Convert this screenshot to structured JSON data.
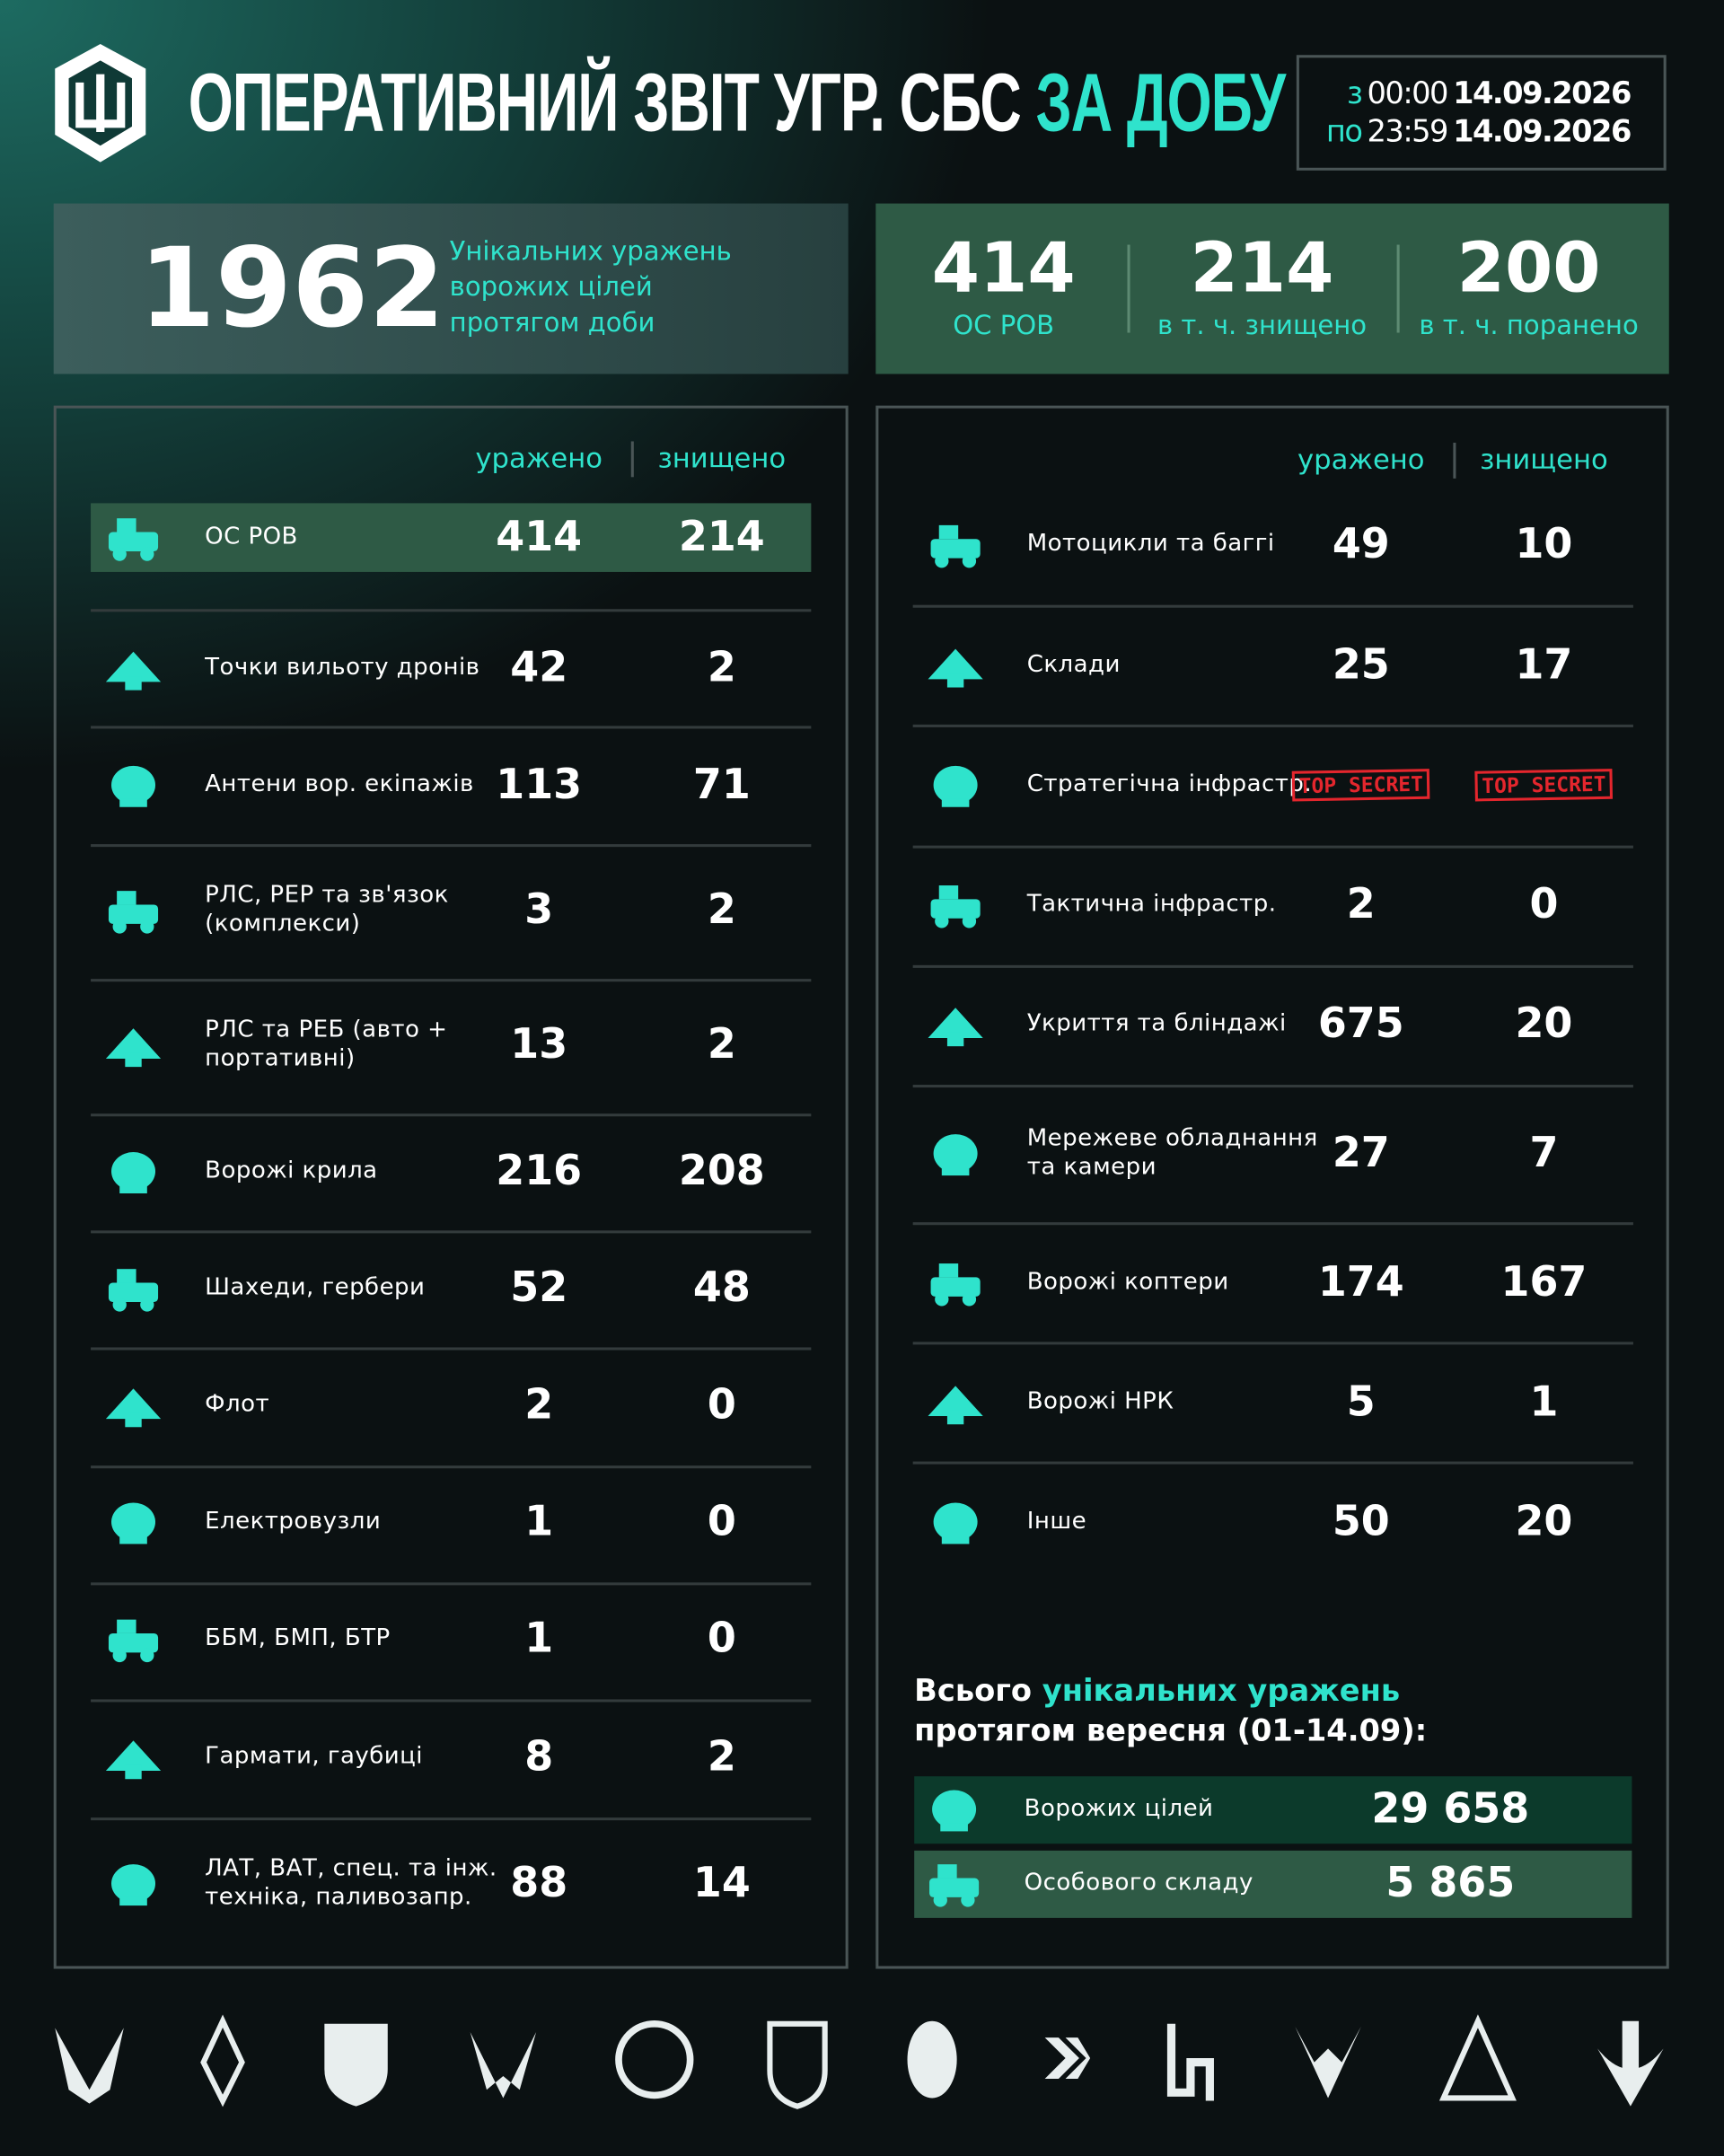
{
  "header": {
    "title_main": "ОПЕРАТИВНИЙ ЗВІТ УГР. СБС",
    "title_accent": "ЗА ДОБУ",
    "period": {
      "from_label": "з",
      "from_time": "00:00",
      "from_date": "14.09.2026",
      "to_label": "по",
      "to_time": "23:59",
      "to_date": "14.09.2026"
    }
  },
  "summary": {
    "total": "1962",
    "caption": [
      "Унікальних уражень",
      "ворожих цілей",
      "протягом доби"
    ],
    "personnel": [
      {
        "value": "414",
        "label": "ОС РОВ"
      },
      {
        "value": "214",
        "label": "в т. ч. знищено"
      },
      {
        "value": "200",
        "label": "в т. ч. поранено"
      }
    ]
  },
  "left_table": {
    "headers": [
      "уражено",
      "знищено"
    ],
    "rows": [
      {
        "label": "ОС РОВ",
        "hit": "414",
        "destroyed": "214"
      },
      {
        "label": "Точки вильоту дронів",
        "hit": "42",
        "destroyed": "2"
      },
      {
        "label": "Антени вор. екіпажів",
        "hit": "113",
        "destroyed": "71"
      },
      {
        "label": "РЛС, РЕР та зв'язок\n(комплекси)",
        "hit": "3",
        "destroyed": "2"
      },
      {
        "label": "РЛС та РЕБ (авто +\nпортативні)",
        "hit": "13",
        "destroyed": "2"
      },
      {
        "label": "Ворожі крила",
        "hit": "216",
        "destroyed": "208"
      },
      {
        "label": "Шахеди, гербери",
        "hit": "52",
        "destroyed": "48"
      },
      {
        "label": "Флот",
        "hit": "2",
        "destroyed": "0"
      },
      {
        "label": "Електровузли",
        "hit": "1",
        "destroyed": "0"
      },
      {
        "label": "ББМ, БМП, БТР",
        "hit": "1",
        "destroyed": "0"
      },
      {
        "label": "Гармати, гаубиці",
        "hit": "8",
        "destroyed": "2"
      },
      {
        "label": "ЛАТ, ВАТ, спец. та інж.\nтехніка, паливозапр.",
        "hit": "88",
        "destroyed": "14"
      }
    ]
  },
  "right_table": {
    "headers": [
      "уражено",
      "знищено"
    ],
    "rows": [
      {
        "label": "Мотоцикли та баггі",
        "hit": "49",
        "destroyed": "10"
      },
      {
        "label": "Склади",
        "hit": "25",
        "destroyed": "17"
      },
      {
        "label": "Стратегічна інфрастр.",
        "hit": "TOP SECRET",
        "destroyed": "TOP SECRET"
      },
      {
        "label": "Тактична інфрастр.",
        "hit": "2",
        "destroyed": "0"
      },
      {
        "label": "Укриття та бліндажі",
        "hit": "675",
        "destroyed": "20"
      },
      {
        "label": "Мережеве обладнання\nта камери",
        "hit": "27",
        "destroyed": "7"
      },
      {
        "label": "Ворожі коптери",
        "hit": "174",
        "destroyed": "167"
      },
      {
        "label": "Ворожі НРК",
        "hit": "5",
        "destroyed": "1"
      },
      {
        "label": "Інше",
        "hit": "50",
        "destroyed": "20"
      }
    ]
  },
  "totals": {
    "title_pre": "Всього",
    "title_accent": "унікальних уражень",
    "title_post": "протягом вересня (01-14.09):",
    "rows": [
      {
        "label": "Ворожих цілей",
        "value": "29 658"
      },
      {
        "label": "Особового складу",
        "value": "5 865"
      }
    ]
  }
}
